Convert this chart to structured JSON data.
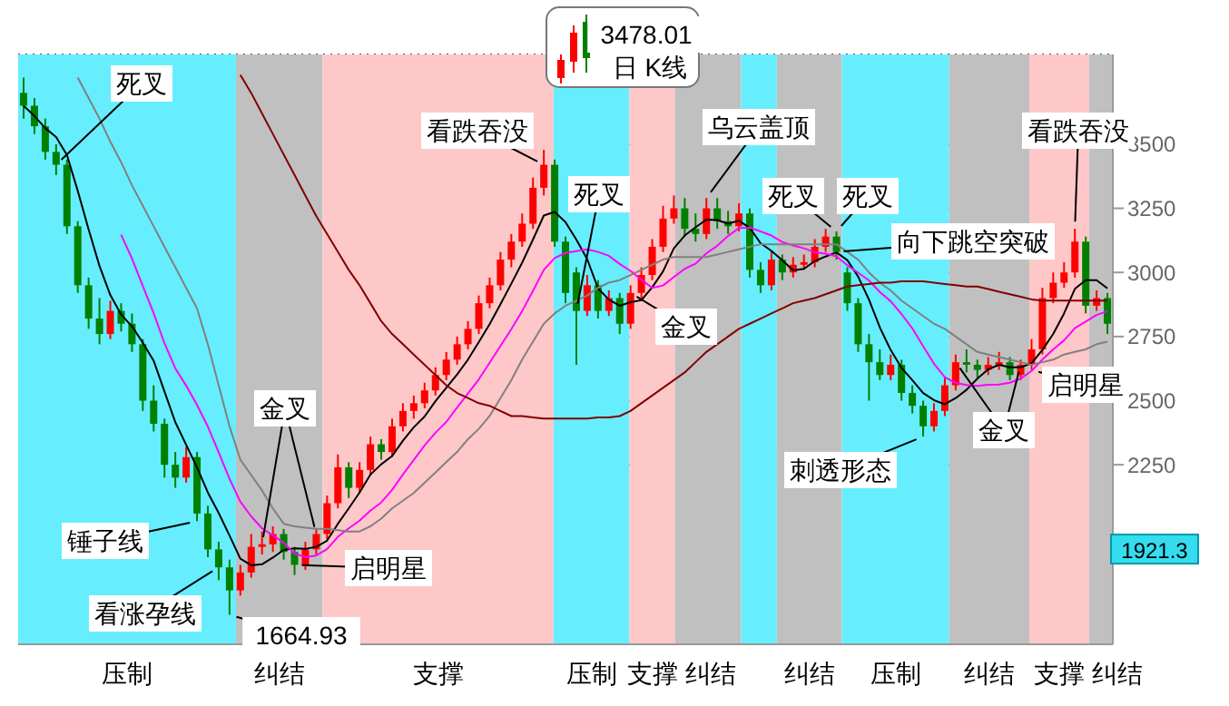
{
  "chart_data": {
    "type": "candlestick",
    "title": "日 K线",
    "categories": [
      null,
      null,
      null,
      null,
      null,
      null,
      null,
      null,
      null,
      null,
      null,
      null,
      null,
      null,
      null,
      null,
      null,
      null,
      null,
      null,
      null,
      null,
      null,
      null,
      null,
      null,
      null,
      null,
      null,
      null,
      null,
      null,
      null,
      null,
      null,
      null,
      null,
      null,
      null,
      null,
      null,
      null,
      null,
      null,
      null,
      null,
      null,
      null,
      null,
      null,
      null,
      null,
      null,
      null,
      null,
      null,
      null,
      null,
      null,
      null,
      null,
      null,
      null,
      null,
      null,
      null,
      null,
      null,
      null,
      null,
      null,
      null,
      null,
      null,
      null,
      null,
      null,
      null,
      null,
      null,
      null,
      null,
      null,
      null,
      null,
      null,
      null,
      null,
      null,
      null,
      null,
      null,
      null,
      null,
      null,
      null,
      null,
      null,
      null,
      null,
      null
    ],
    "ohlc": [
      [
        3700,
        3760,
        3600,
        3650
      ],
      [
        3650,
        3680,
        3540,
        3570
      ],
      [
        3570,
        3600,
        3440,
        3470
      ],
      [
        3470,
        3500,
        3380,
        3420
      ],
      [
        3420,
        3440,
        3150,
        3180
      ],
      [
        3180,
        3200,
        2920,
        2950
      ],
      [
        2950,
        2980,
        2780,
        2820
      ],
      [
        2820,
        2900,
        2720,
        2760
      ],
      [
        2760,
        2890,
        2740,
        2850
      ],
      [
        2850,
        2880,
        2770,
        2800
      ],
      [
        2800,
        2840,
        2690,
        2720
      ],
      [
        2720,
        2740,
        2460,
        2500
      ],
      [
        2500,
        2560,
        2380,
        2410
      ],
      [
        2410,
        2430,
        2200,
        2250
      ],
      [
        2250,
        2300,
        2160,
        2200
      ],
      [
        2200,
        2320,
        2180,
        2280
      ],
      [
        2280,
        2300,
        2030,
        2060
      ],
      [
        2060,
        2090,
        1890,
        1920
      ],
      [
        1920,
        1950,
        1800,
        1850
      ],
      [
        1850,
        1880,
        1664.93,
        1760
      ],
      [
        1760,
        1860,
        1740,
        1830
      ],
      [
        1830,
        1980,
        1810,
        1930
      ],
      [
        1930,
        1990,
        1900,
        1940
      ],
      [
        1940,
        2010,
        1910,
        1980
      ],
      [
        1980,
        2000,
        1880,
        1910
      ],
      [
        1910,
        1930,
        1820,
        1860
      ],
      [
        1860,
        1950,
        1840,
        1920
      ],
      [
        1920,
        2000,
        1900,
        1980
      ],
      [
        1980,
        2130,
        1960,
        2100
      ],
      [
        2100,
        2290,
        2080,
        2240
      ],
      [
        2240,
        2260,
        2120,
        2160
      ],
      [
        2160,
        2260,
        2140,
        2230
      ],
      [
        2230,
        2360,
        2210,
        2330
      ],
      [
        2330,
        2350,
        2270,
        2300
      ],
      [
        2300,
        2430,
        2280,
        2400
      ],
      [
        2400,
        2490,
        2380,
        2460
      ],
      [
        2460,
        2520,
        2430,
        2490
      ],
      [
        2490,
        2570,
        2470,
        2540
      ],
      [
        2540,
        2630,
        2520,
        2600
      ],
      [
        2600,
        2690,
        2580,
        2660
      ],
      [
        2660,
        2750,
        2640,
        2720
      ],
      [
        2720,
        2810,
        2700,
        2780
      ],
      [
        2780,
        2910,
        2760,
        2880
      ],
      [
        2880,
        2980,
        2860,
        2950
      ],
      [
        2950,
        3080,
        2930,
        3050
      ],
      [
        3050,
        3150,
        3020,
        3120
      ],
      [
        3120,
        3230,
        3100,
        3190
      ],
      [
        3190,
        3370,
        3170,
        3330
      ],
      [
        3330,
        3478.01,
        3300,
        3420
      ],
      [
        3420,
        3440,
        3100,
        3120
      ],
      [
        3120,
        3140,
        2880,
        2920
      ],
      [
        3000,
        3020,
        2640,
        2850
      ],
      [
        2850,
        2990,
        2830,
        2950
      ],
      [
        2950,
        2970,
        2820,
        2850
      ],
      [
        2850,
        2930,
        2830,
        2900
      ],
      [
        2900,
        2920,
        2760,
        2800
      ],
      [
        2800,
        2950,
        2780,
        2920
      ],
      [
        2920,
        3020,
        2900,
        2990
      ],
      [
        2990,
        3130,
        2970,
        3100
      ],
      [
        3100,
        3260,
        3080,
        3210
      ],
      [
        3210,
        3300,
        3190,
        3250
      ],
      [
        3250,
        3290,
        3140,
        3170
      ],
      [
        3170,
        3230,
        3120,
        3150
      ],
      [
        3150,
        3290,
        3130,
        3250
      ],
      [
        3250,
        3290,
        3170,
        3200
      ],
      [
        3200,
        3240,
        3150,
        3180
      ],
      [
        3180,
        3270,
        3160,
        3230
      ],
      [
        3230,
        3250,
        2980,
        3010
      ],
      [
        3010,
        3040,
        2920,
        2950
      ],
      [
        2950,
        3080,
        2930,
        3050
      ],
      [
        3050,
        3070,
        2970,
        3000
      ],
      [
        3000,
        3060,
        2980,
        3030
      ],
      [
        3030,
        3070,
        3010,
        3040
      ],
      [
        3040,
        3130,
        3020,
        3100
      ],
      [
        3100,
        3170,
        3080,
        3140
      ],
      [
        3140,
        3160,
        3050,
        3080
      ],
      [
        3000,
        3020,
        2850,
        2880
      ],
      [
        2880,
        2900,
        2690,
        2720
      ],
      [
        2720,
        2760,
        2500,
        2650
      ],
      [
        2650,
        2700,
        2580,
        2600
      ],
      [
        2600,
        2680,
        2580,
        2640
      ],
      [
        2640,
        2660,
        2500,
        2530
      ],
      [
        2530,
        2560,
        2450,
        2480
      ],
      [
        2480,
        2500,
        2360,
        2400
      ],
      [
        2400,
        2490,
        2380,
        2460
      ],
      [
        2460,
        2590,
        2440,
        2560
      ],
      [
        2560,
        2680,
        2540,
        2650
      ],
      [
        2650,
        2700,
        2610,
        2640
      ],
      [
        2640,
        2660,
        2590,
        2620
      ],
      [
        2620,
        2670,
        2600,
        2640
      ],
      [
        2640,
        2690,
        2620,
        2650
      ],
      [
        2650,
        2670,
        2580,
        2600
      ],
      [
        2600,
        2660,
        2580,
        2640
      ],
      [
        2640,
        2740,
        2620,
        2700
      ],
      [
        2700,
        2940,
        2680,
        2900
      ],
      [
        2900,
        3000,
        2880,
        2960
      ],
      [
        2960,
        3040,
        2940,
        3000
      ],
      [
        3000,
        3170,
        2980,
        3120
      ],
      [
        3120,
        3140,
        2840,
        2870
      ],
      [
        2870,
        2930,
        2850,
        2900
      ],
      [
        2900,
        2920,
        2760,
        2800
      ]
    ],
    "series": [
      {
        "type": "line",
        "color": "#000000",
        "values": [
          3650,
          3610,
          3563,
          3528,
          3458,
          3318,
          3168,
          3026,
          2912,
          2836,
          2790,
          2726,
          2656,
          2536,
          2416,
          2328,
          2240,
          2142,
          2062,
          1974,
          1884,
          1858,
          1862,
          1888,
          1918,
          1924,
          1922,
          1930,
          1954,
          2020,
          2080,
          2142,
          2212,
          2252,
          2284,
          2344,
          2396,
          2438,
          2498,
          2550,
          2602,
          2660,
          2728,
          2798,
          2876,
          2956,
          3038,
          3128,
          3222,
          3236,
          3196,
          3128,
          3052,
          2938,
          2894,
          2870,
          2884,
          2892,
          2942,
          3004,
          3094,
          3144,
          3176,
          3206,
          3204,
          3190,
          3202,
          3174,
          3114,
          3084,
          3048,
          3008,
          3014,
          3044,
          3062,
          3078,
          3048,
          2984,
          2894,
          2786,
          2698,
          2628,
          2580,
          2530,
          2502,
          2486,
          2510,
          2542,
          2586,
          2622,
          2640,
          2630,
          2630,
          2646,
          2698,
          2760,
          2840,
          2936,
          2970,
          2970,
          2938
        ]
      },
      {
        "type": "line",
        "color": "#ff00ff",
        "values": [
          null,
          null,
          null,
          null,
          null,
          null,
          null,
          null,
          null,
          3147,
          3054,
          2947,
          2841,
          2724,
          2626,
          2559,
          2483,
          2399,
          2299,
          2195,
          2106,
          2049,
          2002,
          1975,
          1946,
          1904,
          1890,
          1896,
          1921,
          1969,
          2002,
          2032,
          2071,
          2103,
          2152,
          2212,
          2269,
          2325,
          2375,
          2417,
          2473,
          2528,
          2583,
          2648,
          2713,
          2779,
          2849,
          2928,
          3010,
          3056,
          3076,
          3083,
          3090,
          3080,
          3065,
          3033,
          3006,
          2972,
          2940,
          2949,
          2982,
          3014,
          3034,
          3074,
          3104,
          3142,
          3173,
          3175,
          3160,
          3144,
          3119,
          3105,
          3094,
          3079,
          3073,
          3063,
          3028,
          2999,
          2969,
          2924,
          2888,
          2838,
          2782,
          2712,
          2644,
          2592,
          2569,
          2561,
          2558,
          2562,
          2563,
          2570,
          2586,
          2616,
          2660,
          2700,
          2735,
          2783,
          2808,
          2834,
          2849
        ]
      },
      {
        "type": "line",
        "color": "#808080",
        "values": [
          null,
          null,
          null,
          null,
          null,
          3760,
          3680,
          3600,
          3510,
          3430,
          3340,
          3260,
          3180,
          3100,
          3020,
          2940,
          2860,
          2720,
          2560,
          2400,
          2270,
          2210,
          2150,
          2080,
          2020,
          2010,
          2005,
          2000,
          2000,
          1995,
          1990,
          1990,
          2010,
          2040,
          2080,
          2110,
          2140,
          2180,
          2220,
          2260,
          2300,
          2350,
          2390,
          2440,
          2510,
          2580,
          2660,
          2730,
          2800,
          2840,
          2870,
          2890,
          2910,
          2940,
          2960,
          2970,
          2990,
          3010,
          3030,
          3050,
          3060,
          3060,
          3060,
          3060,
          3070,
          3080,
          3090,
          3100,
          3110,
          3110,
          3110,
          3110,
          3110,
          3110,
          3110,
          3110,
          3080,
          3050,
          3000,
          2960,
          2930,
          2890,
          2860,
          2830,
          2800,
          2780,
          2750,
          2720,
          2690,
          2680,
          2670,
          2660,
          2650,
          2640,
          2650,
          2660,
          2680,
          2690,
          2700,
          2720,
          2730
        ]
      },
      {
        "type": "line",
        "color": "#800000",
        "values": [
          null,
          null,
          null,
          null,
          null,
          null,
          null,
          null,
          null,
          null,
          null,
          null,
          null,
          null,
          null,
          null,
          null,
          null,
          null,
          null,
          3770,
          3700,
          3620,
          3540,
          3460,
          3380,
          3300,
          3220,
          3150,
          3080,
          3010,
          2950,
          2880,
          2810,
          2760,
          2720,
          2680,
          2640,
          2600,
          2560,
          2530,
          2510,
          2490,
          2480,
          2460,
          2440,
          2440,
          2435,
          2430,
          2430,
          2430,
          2430,
          2430,
          2435,
          2435,
          2440,
          2460,
          2490,
          2520,
          2550,
          2580,
          2610,
          2650,
          2690,
          2720,
          2750,
          2780,
          2800,
          2820,
          2840,
          2860,
          2880,
          2890,
          2900,
          2915,
          2930,
          2945,
          2950,
          2955,
          2960,
          2960,
          2965,
          2965,
          2965,
          2960,
          2955,
          2950,
          2945,
          2945,
          2935,
          2925,
          2915,
          2905,
          2895,
          2890,
          2890,
          2890,
          2890,
          2890,
          2890,
          2890
        ]
      }
    ],
    "ylim": [
      1550,
      3850
    ],
    "yticks": [
      2250,
      2500,
      2750,
      3000,
      3250,
      3500
    ],
    "grid": "y",
    "tick_labels": "y",
    "annotations": [
      "死叉",
      "锤子线",
      "看涨孕线",
      "1664.93",
      "金叉",
      "启明星",
      "看跌吞没",
      "死叉",
      "金叉",
      "乌云盖顶",
      "死叉",
      "死叉",
      "向下跳空突破",
      "刺透形态",
      "金叉",
      "启明星",
      "看跌吞没",
      "3478.01",
      "1921.3",
      "压制",
      "纠结",
      "支撑",
      "压制",
      "支撑",
      "纠结",
      "纠结",
      "压制",
      "纠结",
      "支撑",
      "纠结"
    ]
  }
}
